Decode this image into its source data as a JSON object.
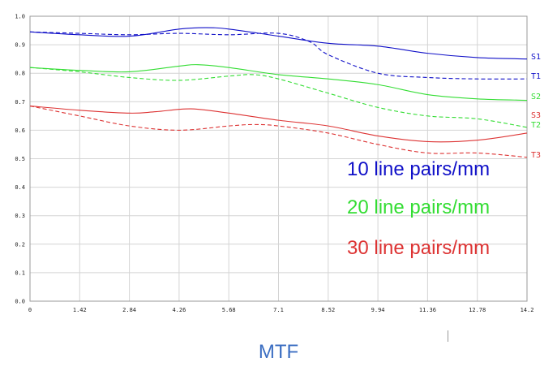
{
  "chart_data": {
    "type": "line",
    "title": "MTF",
    "xlim": [
      0,
      14.2
    ],
    "ylim": [
      0,
      1.0
    ],
    "grid": true,
    "x_ticks": [
      "0",
      "1.42",
      "2.84",
      "4.26",
      "5.68",
      "7.1",
      "8.52",
      "9.94",
      "11.36",
      "12.78",
      "14.2"
    ],
    "y_ticks": [
      "0.0",
      "0.1",
      "0.2",
      "0.3",
      "0.4",
      "0.5",
      "0.6",
      "0.7",
      "0.8",
      "0.9",
      "1.0"
    ],
    "legend": [
      {
        "label": "10 line pairs/mm",
        "color": "#1010c8"
      },
      {
        "label": "20 line pairs/mm",
        "color": "#33dd33"
      },
      {
        "label": "30 line pairs/mm",
        "color": "#dd3333"
      }
    ],
    "legend_position": "right-center",
    "series": [
      {
        "name": "S1",
        "color": "#1010c8",
        "style": "solid",
        "x": [
          0,
          1.42,
          2.84,
          4.26,
          5.0,
          5.68,
          7.1,
          8.52,
          9.94,
          11.36,
          12.78,
          14.2
        ],
        "y": [
          0.945,
          0.935,
          0.93,
          0.955,
          0.96,
          0.955,
          0.93,
          0.905,
          0.895,
          0.87,
          0.855,
          0.85
        ]
      },
      {
        "name": "T1",
        "color": "#1010c8",
        "style": "dashed",
        "x": [
          0,
          1.42,
          2.84,
          4.26,
          5.68,
          7.1,
          8.0,
          8.52,
          9.94,
          11.36,
          12.78,
          14.2
        ],
        "y": [
          0.945,
          0.94,
          0.935,
          0.94,
          0.935,
          0.94,
          0.91,
          0.865,
          0.8,
          0.785,
          0.78,
          0.78
        ]
      },
      {
        "name": "S2",
        "color": "#33dd33",
        "style": "solid",
        "x": [
          0,
          1.42,
          2.84,
          4.26,
          4.8,
          5.68,
          7.1,
          8.52,
          9.94,
          11.36,
          12.78,
          14.2
        ],
        "y": [
          0.82,
          0.81,
          0.805,
          0.825,
          0.83,
          0.82,
          0.795,
          0.78,
          0.76,
          0.725,
          0.71,
          0.705
        ]
      },
      {
        "name": "T2",
        "color": "#33dd33",
        "style": "dashed",
        "x": [
          0,
          1.42,
          2.84,
          4.26,
          5.68,
          6.4,
          7.1,
          8.52,
          9.94,
          11.36,
          12.78,
          14.2
        ],
        "y": [
          0.82,
          0.805,
          0.785,
          0.775,
          0.79,
          0.795,
          0.78,
          0.73,
          0.68,
          0.65,
          0.64,
          0.61
        ]
      },
      {
        "name": "S3",
        "color": "#dd3333",
        "style": "solid",
        "x": [
          0,
          1.42,
          2.84,
          3.6,
          4.6,
          5.68,
          7.1,
          8.52,
          9.94,
          11.36,
          12.78,
          14.2
        ],
        "y": [
          0.685,
          0.67,
          0.66,
          0.665,
          0.675,
          0.66,
          0.635,
          0.615,
          0.58,
          0.56,
          0.565,
          0.59
        ]
      },
      {
        "name": "T3",
        "color": "#dd3333",
        "style": "dashed",
        "x": [
          0,
          1.42,
          2.84,
          4.26,
          5.68,
          6.4,
          7.1,
          8.52,
          9.94,
          11.36,
          12.78,
          14.2
        ],
        "y": [
          0.685,
          0.65,
          0.615,
          0.6,
          0.615,
          0.62,
          0.615,
          0.59,
          0.55,
          0.52,
          0.52,
          0.505
        ]
      }
    ]
  }
}
